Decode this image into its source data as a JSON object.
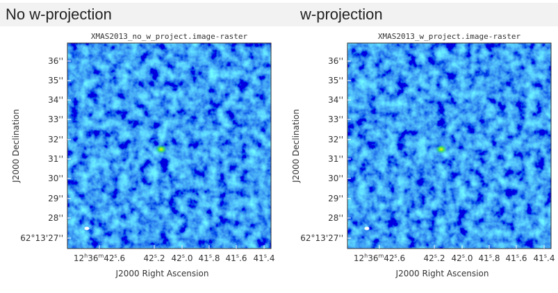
{
  "headers": [
    "No w-projection",
    "w-projection"
  ],
  "panels": [
    {
      "title": "XMAS2013_no_w_project.image-raster",
      "y_label": "J2000 Declination",
      "x_label": "J2000 Right Ascension",
      "y_ticks": [
        "36''",
        "35''",
        "34''",
        "33''",
        "32''",
        "31''",
        "30''",
        "29''",
        "28''",
        "62°13'27''"
      ],
      "x_ticks": [
        [
          "12",
          "h",
          "36",
          "m",
          "42",
          "s",
          ".6"
        ],
        [
          "42",
          "s",
          ".2"
        ],
        [
          "42",
          "s",
          ".0"
        ],
        [
          "41",
          "s",
          ".8"
        ],
        [
          "41",
          "s",
          ".6"
        ],
        [
          "41",
          "s",
          ".4"
        ]
      ]
    },
    {
      "title": "XMAS2013_w_project.image-raster",
      "y_label": "J2000 Declination",
      "x_label": "J2000 Right Ascension",
      "y_ticks": [
        "36''",
        "35''",
        "34''",
        "33''",
        "32''",
        "31''",
        "30''",
        "29''",
        "28''",
        "62°13'27''"
      ],
      "x_ticks": [
        [
          "12",
          "h",
          "36",
          "m",
          "42",
          "s",
          ".6"
        ],
        [
          "42",
          "s",
          ".2"
        ],
        [
          "42",
          "s",
          ".0"
        ],
        [
          "41",
          "s",
          ".8"
        ],
        [
          "41",
          "s",
          ".6"
        ],
        [
          "41",
          "s",
          ".4"
        ]
      ]
    }
  ]
}
